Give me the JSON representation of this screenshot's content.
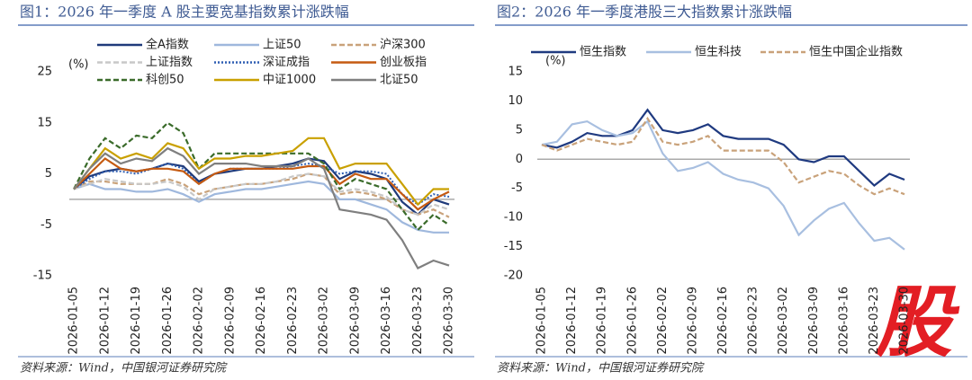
{
  "chart_data": [
    {
      "type": "line",
      "title": "图1：2026 年一季度 A 股主要宽基指数累计涨跌幅",
      "unit": "(%)",
      "source": "资料来源：Wind，中国银河证券研究院",
      "categories": [
        "2026-01-05",
        null,
        "2026-01-12",
        null,
        "2026-01-19",
        null,
        "2026-01-26",
        null,
        "2026-02-02",
        null,
        "2026-02-09",
        null,
        "2026-02-16",
        null,
        "2026-02-23",
        null,
        "2026-03-02",
        null,
        "2026-03-09",
        null,
        "2026-03-16",
        null,
        "2026-03-23",
        null,
        "2026-03-30"
      ],
      "ylim": [
        -15,
        25
      ],
      "yticks": [
        -15,
        -5,
        5,
        15,
        25
      ],
      "series": [
        {
          "name": "全A指数",
          "color": "#1f3a7a",
          "style": "solid",
          "values": [
            2,
            4.5,
            5.5,
            6,
            5.5,
            6,
            7,
            6.5,
            3.5,
            5,
            5.5,
            6,
            6,
            6.5,
            7,
            8,
            7.5,
            4,
            5.5,
            5,
            4,
            -0.5,
            -3,
            0,
            -1
          ]
        },
        {
          "name": "上证50",
          "color": "#9fb8dd",
          "style": "solid",
          "values": [
            2,
            3,
            2,
            2,
            1.5,
            1.5,
            2,
            1,
            -0.5,
            1,
            1.5,
            2,
            2,
            2.5,
            3,
            3.5,
            3,
            0,
            0,
            -1,
            -2,
            -4.5,
            -6,
            -6.5,
            -6.5
          ]
        },
        {
          "name": "沪深300",
          "color": "#c9a27a",
          "style": "dashed",
          "values": [
            2,
            3.5,
            3.5,
            3,
            3,
            3,
            4,
            3,
            1,
            2,
            2.5,
            3,
            3,
            3.5,
            4,
            5,
            4.5,
            1,
            1.5,
            1,
            0,
            -2,
            -3,
            -2,
            -3.5
          ]
        },
        {
          "name": "上证指数",
          "color": "#c8c8c8",
          "style": "dashed",
          "values": [
            2,
            3,
            4,
            3.5,
            3,
            3,
            3.5,
            2.5,
            0,
            2,
            2.5,
            3,
            3,
            3.5,
            4.5,
            5,
            4.5,
            1.5,
            2,
            1.5,
            0.5,
            -2,
            -3,
            -1,
            -2
          ]
        },
        {
          "name": "深证成指",
          "color": "#2f5fb3",
          "style": "dotted",
          "values": [
            2,
            4,
            5.5,
            5.5,
            5,
            6,
            7,
            6,
            3,
            5,
            6,
            6,
            6,
            6,
            6.5,
            7,
            6.5,
            5,
            5.5,
            5.5,
            5,
            1,
            -1,
            1,
            0.5
          ]
        },
        {
          "name": "创业板指",
          "color": "#c55a11",
          "style": "solid",
          "values": [
            2,
            5,
            8,
            6,
            5.5,
            6,
            6,
            5.5,
            3,
            5,
            6,
            6,
            6,
            6,
            6,
            6.5,
            6.5,
            3,
            5,
            4,
            4,
            1,
            -2,
            0,
            1.5
          ]
        },
        {
          "name": "科创50",
          "color": "#3a6b2a",
          "style": "dashed",
          "values": [
            2,
            8,
            12,
            10,
            12.5,
            12,
            15,
            13,
            6,
            9,
            9,
            9,
            9,
            9,
            9,
            9,
            7,
            2,
            4,
            3,
            2,
            -2,
            -6,
            -3,
            -5
          ]
        },
        {
          "name": "中证1000",
          "color": "#c9a000",
          "style": "solid",
          "values": [
            2,
            6,
            10,
            8,
            9,
            8,
            11,
            10,
            6,
            8,
            8,
            8.5,
            8.5,
            9,
            9.5,
            12,
            12,
            6,
            7,
            7,
            7,
            3,
            -1,
            2,
            2
          ]
        },
        {
          "name": "北证50",
          "color": "#7f7f7f",
          "style": "solid",
          "values": [
            2,
            6,
            9,
            7,
            8,
            7.5,
            10,
            8.5,
            5,
            7,
            7,
            7,
            6.5,
            6.5,
            6.5,
            8,
            6,
            -2,
            -2.5,
            -3,
            -4,
            -8,
            -13.5,
            -12,
            -13
          ]
        }
      ]
    },
    {
      "type": "line",
      "title": "图2：2026 年一季度港股三大指数累计涨跌幅",
      "unit": "(%)",
      "source": "资料来源：Wind，中国银河证券研究院",
      "categories": [
        "2026-01-05",
        null,
        "2026-01-12",
        null,
        "2026-01-19",
        null,
        "2026-01-26",
        null,
        "2026-02-02",
        null,
        "2026-02-09",
        null,
        "2026-02-16",
        null,
        "2026-02-23",
        null,
        "2026-03-02",
        null,
        "2026-03-09",
        null,
        "2026-03-16",
        null,
        "2026-03-23",
        null,
        "2026-03-30"
      ],
      "ylim": [
        -20,
        15
      ],
      "yticks": [
        -20,
        -15,
        -10,
        -5,
        0,
        5,
        10,
        15
      ],
      "series": [
        {
          "name": "恒生指数",
          "color": "#1f3a80",
          "style": "solid",
          "values": [
            2.5,
            2,
            3,
            4.5,
            4,
            4,
            5,
            8.5,
            5,
            4.5,
            5,
            6,
            4,
            3.5,
            3.5,
            3.5,
            2.5,
            0,
            -0.5,
            0.5,
            0.5,
            -2,
            -4.5,
            -2.5,
            -3.5
          ]
        },
        {
          "name": "恒生科技",
          "color": "#a8bfe0",
          "style": "solid",
          "values": [
            2.5,
            3,
            6,
            6.5,
            5,
            4,
            4.5,
            6.5,
            1,
            -2,
            -1.5,
            -0.5,
            -2.5,
            -3.5,
            -4,
            -5,
            -8,
            -13,
            -10.5,
            -8.5,
            -7.5,
            -11,
            -14,
            -13.5,
            -15.5
          ]
        },
        {
          "name": "恒生中国企业指数",
          "color": "#c9a27a",
          "style": "dashed",
          "values": [
            2.5,
            1.5,
            2.5,
            3.5,
            3,
            2.5,
            3,
            7,
            3,
            2.5,
            3,
            4,
            1.5,
            1.5,
            1.5,
            1.5,
            -0.5,
            -4,
            -3,
            -2,
            -2.5,
            -4.5,
            -6,
            -5,
            -6
          ]
        }
      ]
    }
  ],
  "watermark": "股"
}
